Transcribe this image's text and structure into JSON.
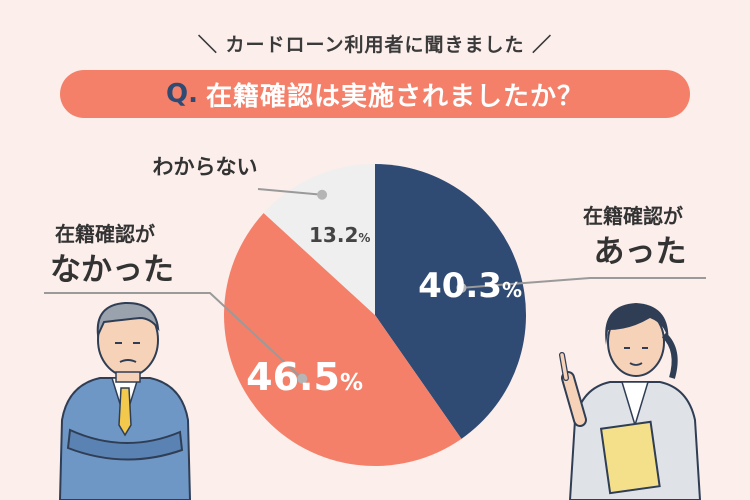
{
  "header": {
    "subtitle": "＼ カードローン利用者に聞きました ／",
    "question_prefix": "Q.",
    "question": "在籍確認は実施されましたか？"
  },
  "chart_data": {
    "type": "pie",
    "title": "在籍確認は実施されましたか？",
    "unit": "%",
    "start_angle_deg": 0,
    "direction": "clockwise",
    "slices": [
      {
        "label_line1": "在籍確認が",
        "label_line2": "あった",
        "value": 40.3,
        "display": "40.3",
        "color": "#2f4a73",
        "text_color": "#ffffff"
      },
      {
        "label_line1": "在籍確認が",
        "label_line2": "なかった",
        "value": 46.5,
        "display": "46.5",
        "color": "#f4806a",
        "text_color": "#ffffff"
      },
      {
        "label_line1": "わからない",
        "label_line2": "",
        "value": 13.2,
        "display": "13.2",
        "color": "#efefef",
        "text_color": "#444444"
      }
    ]
  },
  "colors": {
    "background": "#fbeeeb",
    "accent": "#f4806a",
    "navy": "#2f4a73",
    "leader": "#9a9a9a"
  },
  "illustrations": {
    "left": "businessman-arms-crossed",
    "right": "businesswoman-pointing-with-folder"
  }
}
